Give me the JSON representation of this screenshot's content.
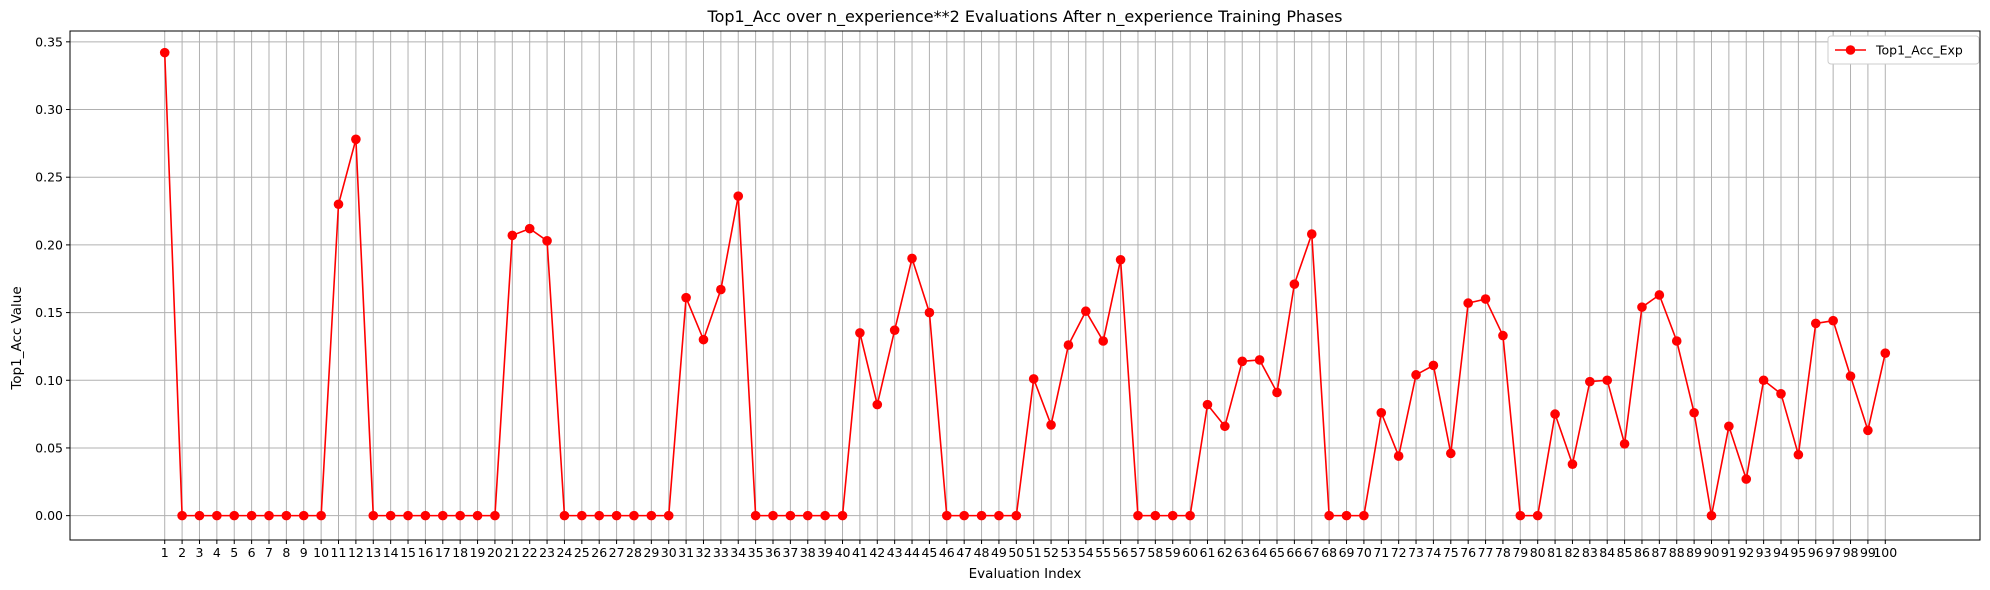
{
  "chart_data": {
    "type": "line",
    "title": "Top1_Acc over n_experience**2 Evaluations After n_experience Training Phases",
    "xlabel": "Evaluation Index",
    "ylabel": "Top1_Acc Value",
    "ylim": [
      -0.018,
      0.358
    ],
    "yticks": [
      0.0,
      0.05,
      0.1,
      0.15,
      0.2,
      0.25,
      0.3,
      0.35
    ],
    "ytick_labels": [
      "0.00",
      "0.05",
      "0.10",
      "0.15",
      "0.20",
      "0.25",
      "0.30",
      "0.35"
    ],
    "x": [
      1,
      2,
      3,
      4,
      5,
      6,
      7,
      8,
      9,
      10,
      11,
      12,
      13,
      14,
      15,
      16,
      17,
      18,
      19,
      20,
      21,
      22,
      23,
      24,
      25,
      26,
      27,
      28,
      29,
      30,
      31,
      32,
      33,
      34,
      35,
      36,
      37,
      38,
      39,
      40,
      41,
      42,
      43,
      44,
      45,
      46,
      47,
      48,
      49,
      50,
      51,
      52,
      53,
      54,
      55,
      56,
      57,
      58,
      59,
      60,
      61,
      62,
      63,
      64,
      65,
      66,
      67,
      68,
      69,
      70,
      71,
      72,
      73,
      74,
      75,
      76,
      77,
      78,
      79,
      80,
      81,
      82,
      83,
      84,
      85,
      86,
      87,
      88,
      89,
      90,
      91,
      92,
      93,
      94,
      95,
      96,
      97,
      98,
      99,
      100
    ],
    "grid": true,
    "legend_position": "top-right",
    "series": [
      {
        "name": "Top1_Acc_Exp",
        "color": "#ff0000",
        "marker": "circle",
        "values": [
          0.342,
          0,
          0,
          0,
          0,
          0,
          0,
          0,
          0,
          0,
          0.23,
          0.278,
          0,
          0,
          0,
          0,
          0,
          0,
          0,
          0,
          0.207,
          0.212,
          0.203,
          0,
          0,
          0,
          0,
          0,
          0,
          0,
          0.161,
          0.13,
          0.167,
          0.236,
          0,
          0,
          0,
          0,
          0,
          0,
          0.135,
          0.082,
          0.137,
          0.19,
          0.15,
          0,
          0,
          0,
          0,
          0,
          0.101,
          0.067,
          0.126,
          0.151,
          0.129,
          0.189,
          0,
          0,
          0,
          0,
          0.082,
          0.066,
          0.114,
          0.115,
          0.091,
          0.171,
          0.208,
          0,
          0,
          0,
          0.076,
          0.044,
          0.104,
          0.111,
          0.046,
          0.157,
          0.16,
          0.133,
          0,
          0,
          0.075,
          0.038,
          0.099,
          0.1,
          0.053,
          0.154,
          0.163,
          0.129,
          0.076,
          0,
          0.066,
          0.027,
          0.1,
          0.09,
          0.045,
          0.142,
          0.144,
          0.103,
          0.063,
          0.12
        ]
      }
    ]
  }
}
